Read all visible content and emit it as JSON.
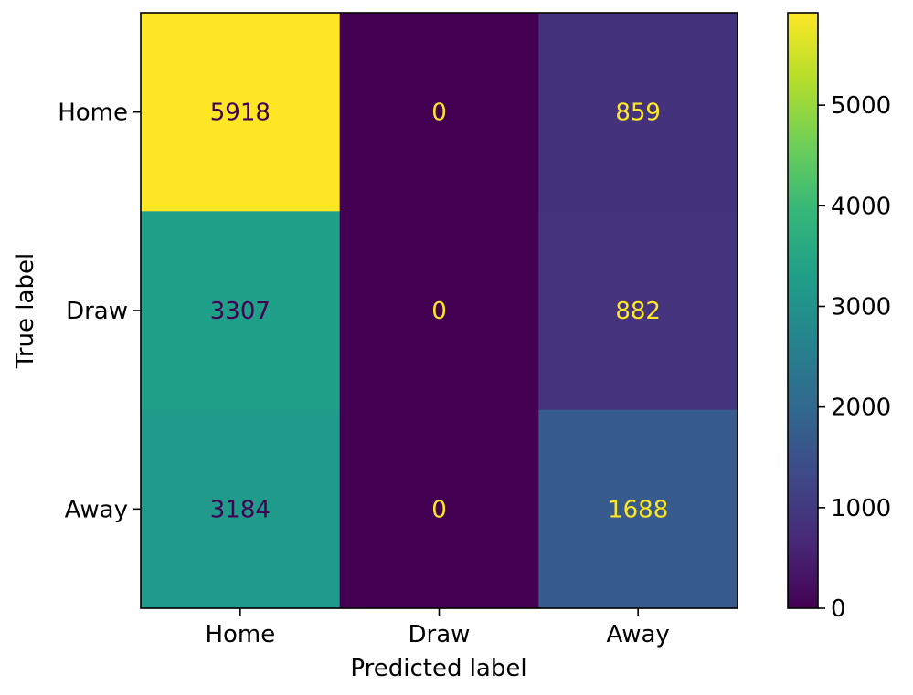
{
  "chart_data": {
    "type": "heatmap",
    "title": "",
    "xlabel": "Predicted label",
    "ylabel": "True label",
    "x_categories": [
      "Home",
      "Draw",
      "Away"
    ],
    "y_categories": [
      "Home",
      "Draw",
      "Away"
    ],
    "values": [
      [
        5918,
        0,
        859
      ],
      [
        3307,
        0,
        882
      ],
      [
        3184,
        0,
        1688
      ]
    ],
    "cell_labels": [
      [
        "5918",
        "0",
        "859"
      ],
      [
        "3307",
        "0",
        "882"
      ],
      [
        "3184",
        "0",
        "1688"
      ]
    ],
    "colormap": "viridis",
    "colorbar": {
      "range": [
        0,
        5918
      ],
      "ticks": [
        0,
        1000,
        2000,
        3000,
        4000,
        5000
      ],
      "tick_labels": [
        "0",
        "1000",
        "2000",
        "3000",
        "4000",
        "5000"
      ]
    },
    "text_colors": {
      "light": "#fde725",
      "dark": "#440154"
    },
    "grid": false,
    "legend": "none"
  }
}
